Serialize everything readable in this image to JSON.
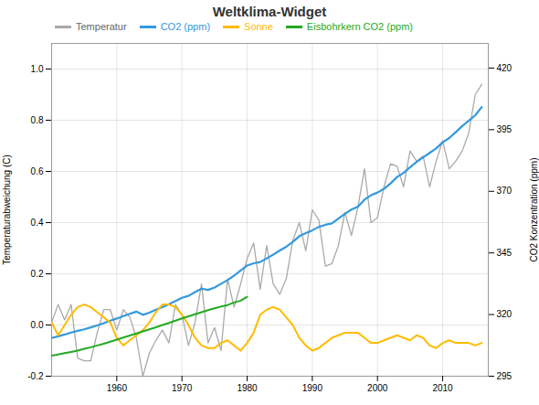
{
  "chart_data": {
    "type": "line",
    "title": "Weltklima-Widget",
    "ylabel": "Temperaturabweichung (C)",
    "y2label": "CO2 Konzentration (ppm)",
    "xlim": [
      1950,
      2017
    ],
    "xticks": [
      1960,
      1970,
      1980,
      1990,
      2000,
      2010
    ],
    "ylim": [
      -0.2,
      1.1
    ],
    "yticks": [
      -0.2,
      {
        "value": 0,
        "label": "0.0"
      },
      0.2,
      0.4,
      0.6,
      0.8,
      {
        "value": 1,
        "label": "1.0"
      }
    ],
    "y2lim": [
      295,
      430
    ],
    "y2ticks": [
      295,
      320,
      345,
      370,
      395,
      420
    ],
    "grid": true,
    "legend": "upper left",
    "series": [
      {
        "name": "Temperatur",
        "color": "#aaaaaa",
        "x": [
          1950,
          1951,
          1952,
          1953,
          1954,
          1955,
          1956,
          1957,
          1958,
          1959,
          1960,
          1961,
          1962,
          1963,
          1964,
          1965,
          1966,
          1967,
          1968,
          1969,
          1970,
          1971,
          1972,
          1973,
          1974,
          1975,
          1976,
          1977,
          1978,
          1979,
          1980,
          1981,
          1982,
          1983,
          1984,
          1985,
          1986,
          1987,
          1988,
          1989,
          1990,
          1991,
          1992,
          1993,
          1994,
          1995,
          1996,
          1997,
          1998,
          1999,
          2000,
          2001,
          2002,
          2003,
          2004,
          2005,
          2006,
          2007,
          2008,
          2009,
          2010,
          2011,
          2012,
          2013,
          2014,
          2015,
          2016
        ],
        "values": [
          0.01,
          0.08,
          0.02,
          0.08,
          -0.13,
          -0.14,
          -0.14,
          -0.03,
          0.06,
          0.06,
          -0.02,
          0.06,
          0.03,
          -0.05,
          -0.2,
          -0.11,
          -0.06,
          -0.02,
          -0.07,
          0.08,
          0.04,
          -0.08,
          0.01,
          0.16,
          -0.07,
          -0.01,
          -0.1,
          0.18,
          0.07,
          0.16,
          0.26,
          0.32,
          0.14,
          0.31,
          0.16,
          0.12,
          0.18,
          0.33,
          0.4,
          0.29,
          0.45,
          0.41,
          0.23,
          0.24,
          0.31,
          0.44,
          0.35,
          0.46,
          0.61,
          0.4,
          0.42,
          0.54,
          0.63,
          0.62,
          0.54,
          0.68,
          0.64,
          0.66,
          0.54,
          0.64,
          0.72,
          0.61,
          0.64,
          0.68,
          0.75,
          0.9,
          0.94
        ]
      },
      {
        "name": "CO2 (ppm)",
        "color": "#3399dd",
        "axis": "y2",
        "x": [
          1950,
          1951,
          1952,
          1953,
          1954,
          1955,
          1956,
          1957,
          1958,
          1959,
          1960,
          1961,
          1962,
          1963,
          1964,
          1965,
          1966,
          1967,
          1968,
          1969,
          1970,
          1971,
          1972,
          1973,
          1974,
          1975,
          1976,
          1977,
          1978,
          1979,
          1980,
          1981,
          1982,
          1983,
          1984,
          1985,
          1986,
          1987,
          1988,
          1989,
          1990,
          1991,
          1992,
          1993,
          1994,
          1995,
          1996,
          1997,
          1998,
          1999,
          2000,
          2001,
          2002,
          2003,
          2004,
          2005,
          2006,
          2007,
          2008,
          2009,
          2010,
          2011,
          2012,
          2013,
          2014,
          2015,
          2016
        ],
        "values": [
          310.5,
          311.2,
          311.9,
          312.7,
          313.4,
          314.0,
          314.8,
          315.6,
          316.5,
          317.5,
          318.4,
          319.4,
          320.3,
          321.2,
          319.9,
          320.8,
          322.0,
          323.0,
          324.2,
          325.5,
          326.8,
          327.6,
          329.1,
          330.5,
          330.0,
          331.0,
          332.5,
          334.0,
          335.8,
          337.9,
          339.9,
          340.8,
          341.3,
          342.8,
          344.3,
          346.0,
          347.5,
          349.5,
          351.8,
          353.0,
          354.2,
          355.6,
          356.4,
          357.0,
          358.9,
          360.9,
          362.6,
          363.8,
          366.6,
          368.4,
          369.5,
          371.0,
          373.2,
          375.8,
          377.5,
          379.8,
          381.9,
          383.8,
          385.6,
          387.4,
          389.9,
          391.6,
          394.0,
          396.5,
          398.6,
          400.9,
          404.2
        ]
      },
      {
        "name": "Sonne",
        "color": "#ffbb00",
        "x": [
          1950,
          1951,
          1952,
          1953,
          1954,
          1955,
          1956,
          1957,
          1958,
          1959,
          1960,
          1961,
          1962,
          1963,
          1964,
          1965,
          1966,
          1967,
          1968,
          1969,
          1970,
          1971,
          1972,
          1973,
          1974,
          1975,
          1976,
          1977,
          1978,
          1979,
          1980,
          1981,
          1982,
          1983,
          1984,
          1985,
          1986,
          1987,
          1988,
          1989,
          1990,
          1991,
          1992,
          1993,
          1994,
          1995,
          1996,
          1997,
          1998,
          1999,
          2000,
          2001,
          2002,
          2003,
          2004,
          2005,
          2006,
          2007,
          2008,
          2009,
          2010,
          2011,
          2012,
          2013,
          2014,
          2015,
          2016
        ],
        "values": [
          0.01,
          -0.04,
          0.0,
          0.04,
          0.07,
          0.08,
          0.07,
          0.05,
          0.03,
          0.01,
          -0.05,
          -0.08,
          -0.06,
          -0.04,
          -0.02,
          0.01,
          0.05,
          0.08,
          0.08,
          0.07,
          0.04,
          0.0,
          -0.05,
          -0.08,
          -0.09,
          -0.09,
          -0.07,
          -0.06,
          -0.08,
          -0.1,
          -0.07,
          -0.03,
          0.04,
          0.06,
          0.07,
          0.06,
          0.03,
          0.0,
          -0.05,
          -0.08,
          -0.1,
          -0.09,
          -0.07,
          -0.05,
          -0.04,
          -0.03,
          -0.03,
          -0.03,
          -0.05,
          -0.07,
          -0.07,
          -0.06,
          -0.05,
          -0.04,
          -0.05,
          -0.06,
          -0.04,
          -0.05,
          -0.08,
          -0.09,
          -0.07,
          -0.06,
          -0.07,
          -0.07,
          -0.07,
          -0.08,
          -0.07
        ]
      },
      {
        "name": "Eisbohrkern CO2 (ppm)",
        "color": "#22aa22",
        "x": [
          1950,
          1951,
          1952,
          1953,
          1954,
          1955,
          1956,
          1957,
          1958,
          1959,
          1960,
          1961,
          1962,
          1963,
          1964,
          1965,
          1966,
          1967,
          1968,
          1969,
          1970,
          1971,
          1972,
          1973,
          1974,
          1975,
          1976,
          1977,
          1978,
          1979,
          1980
        ],
        "values": [
          -0.12,
          -0.115,
          -0.11,
          -0.105,
          -0.1,
          -0.093,
          -0.087,
          -0.08,
          -0.073,
          -0.065,
          -0.057,
          -0.049,
          -0.041,
          -0.033,
          -0.025,
          -0.017,
          -0.009,
          0.0,
          0.008,
          0.017,
          0.026,
          0.034,
          0.042,
          0.05,
          0.058,
          0.065,
          0.072,
          0.078,
          0.088,
          0.095,
          0.11
        ]
      }
    ]
  }
}
